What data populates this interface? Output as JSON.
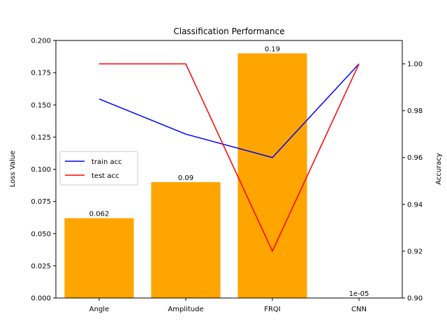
{
  "chart_data": {
    "type": "bar",
    "title": "Classification Performance",
    "categories": [
      "Angle",
      "Amplitude",
      "FRQI",
      "CNN"
    ],
    "bars": {
      "values": [
        0.062,
        0.09,
        0.19,
        1e-05
      ],
      "labels": [
        "0.062",
        "0.09",
        "0.19",
        "1e-05"
      ],
      "color": "#ffa500"
    },
    "left_axis": {
      "label": "Loss Value",
      "ylim": [
        0,
        0.2
      ],
      "ticks": [
        0.0,
        0.025,
        0.05,
        0.075,
        0.1,
        0.125,
        0.15,
        0.175,
        0.2
      ],
      "tick_labels": [
        "0.000",
        "0.025",
        "0.050",
        "0.075",
        "0.100",
        "0.125",
        "0.150",
        "0.175",
        "0.200"
      ]
    },
    "right_axis": {
      "label": "Accuracy",
      "ylim": [
        0.9,
        1.01
      ],
      "ticks": [
        0.9,
        0.92,
        0.94,
        0.96,
        0.98,
        1.0
      ],
      "tick_labels": [
        "0.90",
        "0.92",
        "0.94",
        "0.96",
        "0.98",
        "1.00"
      ]
    },
    "series": [
      {
        "name": "train acc",
        "values": [
          0.985,
          0.97,
          0.96,
          1.0
        ],
        "color": "#0000ff"
      },
      {
        "name": "test acc",
        "values": [
          1.0,
          1.0,
          0.92,
          1.0
        ],
        "color": "#ff0000"
      }
    ],
    "legend_position": "center-left",
    "grid": false
  }
}
